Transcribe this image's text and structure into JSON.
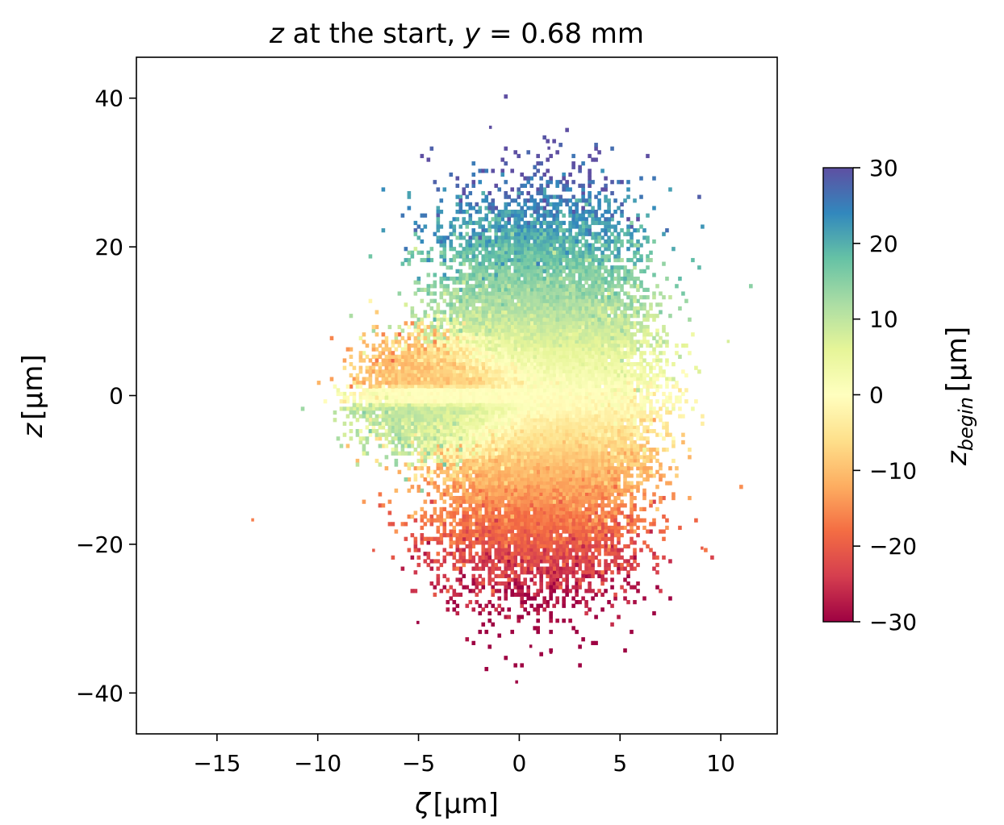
{
  "chart_data": {
    "type": "heatmap",
    "title": {
      "var": "z",
      "middle": " at the start, ",
      "var2": "y",
      "value": " = 0.68 mm"
    },
    "xlabel": {
      "symbol": "ζ",
      "unit": "[µm]"
    },
    "ylabel": {
      "symbol": "z",
      "unit": "[µm]"
    },
    "xlim": [
      -19,
      12.8
    ],
    "ylim": [
      -45.5,
      45.5
    ],
    "xticks": [
      -15,
      -10,
      -5,
      0,
      5,
      10
    ],
    "yticks": [
      -40,
      -20,
      0,
      20,
      40
    ],
    "xtick_labels": [
      "−15",
      "−10",
      "−5",
      "0",
      "5",
      "10"
    ],
    "ytick_labels": [
      "−40",
      "−20",
      "0",
      "20",
      "40"
    ],
    "grid": false,
    "colormap": "Spectral",
    "colorbar": {
      "label_base": "z",
      "label_sub": "begin",
      "label_unit": "[µm]",
      "range": [
        -30,
        30
      ],
      "ticks": [
        -30,
        -20,
        -10,
        0,
        10,
        20,
        30
      ],
      "tick_labels": [
        "−30",
        "−20",
        "−10",
        "0",
        "10",
        "20",
        "30"
      ],
      "colors": [
        "#9e0142",
        "#d53e4f",
        "#f46d43",
        "#fdae61",
        "#fee08b",
        "#ffffbf",
        "#e6f598",
        "#abdda4",
        "#66c2a5",
        "#3288bd",
        "#5e4fa2"
      ]
    },
    "distribution_note": "2D histogram of particles; color encodes initial z",
    "outliers": [
      {
        "x": -13.3,
        "y": -16.5
      },
      {
        "x": -1.5,
        "y": 36.3
      },
      {
        "x": 1.4,
        "y": 33.5
      },
      {
        "x": -0.2,
        "y": -38.3
      },
      {
        "x": 1.5,
        "y": -34.3
      },
      {
        "x": -5.1,
        "y": -30.3
      },
      {
        "x": 0.5,
        "y": -33.5
      },
      {
        "x": 9.0,
        "y": -20.3
      },
      {
        "x": -7.3,
        "y": -20.6
      },
      {
        "x": 10.3,
        "y": 7.5
      }
    ]
  }
}
